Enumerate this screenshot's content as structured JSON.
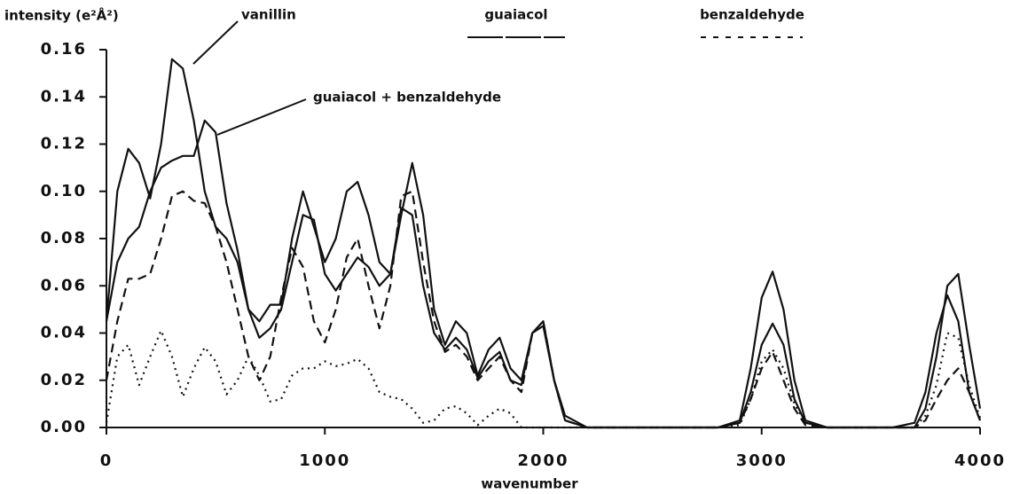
{
  "chart_data": {
    "type": "line",
    "ylabel": "intensity (e²Å²)",
    "xlabel": "wavenumber",
    "xlim": [
      0,
      4000
    ],
    "xticks": [
      0,
      1000,
      2000,
      3000,
      4000
    ],
    "ylim": [
      0,
      0.16
    ],
    "yticks": [
      {
        "value": 0,
        "label": "0.00"
      },
      0.02,
      0.04,
      0.06,
      0.08,
      {
        "value": 0.1,
        "label": "0.10"
      },
      0.12,
      0.14,
      0.16
    ],
    "x": [
      0,
      50,
      100,
      150,
      200,
      250,
      300,
      350,
      400,
      450,
      500,
      550,
      600,
      650,
      700,
      750,
      800,
      850,
      900,
      950,
      1000,
      1050,
      1100,
      1150,
      1200,
      1250,
      1300,
      1350,
      1400,
      1450,
      1500,
      1550,
      1600,
      1650,
      1700,
      1750,
      1800,
      1850,
      1900,
      1950,
      2000,
      2050,
      2100,
      2200,
      2400,
      2600,
      2800,
      2900,
      2950,
      3000,
      3050,
      3100,
      3150,
      3200,
      3300,
      3400,
      3600,
      3700,
      3750,
      3800,
      3850,
      3900,
      3950,
      4000
    ],
    "series": [
      {
        "name": "vanillin",
        "color": "#111111",
        "style": "solid",
        "values": [
          0.045,
          0.1,
          0.118,
          0.112,
          0.097,
          0.12,
          0.156,
          0.152,
          0.13,
          0.1,
          0.085,
          0.08,
          0.07,
          0.05,
          0.045,
          0.052,
          0.052,
          0.08,
          0.1,
          0.085,
          0.07,
          0.08,
          0.1,
          0.104,
          0.09,
          0.07,
          0.065,
          0.09,
          0.112,
          0.09,
          0.05,
          0.035,
          0.045,
          0.04,
          0.022,
          0.033,
          0.038,
          0.025,
          0.02,
          0.04,
          0.043,
          0.02,
          0.005,
          0,
          0,
          0,
          0,
          0.002,
          0.015,
          0.035,
          0.044,
          0.035,
          0.012,
          0.002,
          0,
          0,
          0,
          0.002,
          0.015,
          0.04,
          0.056,
          0.045,
          0.015,
          0.003
        ]
      },
      {
        "name": "guaiacol + benzaldehyde",
        "color": "#111111",
        "style": "solid",
        "values": [
          0.045,
          0.07,
          0.08,
          0.085,
          0.1,
          0.11,
          0.113,
          0.115,
          0.115,
          0.13,
          0.125,
          0.095,
          0.075,
          0.05,
          0.038,
          0.042,
          0.05,
          0.07,
          0.09,
          0.088,
          0.065,
          0.058,
          0.065,
          0.072,
          0.068,
          0.06,
          0.065,
          0.093,
          0.09,
          0.06,
          0.04,
          0.033,
          0.038,
          0.033,
          0.021,
          0.028,
          0.032,
          0.02,
          0.018,
          0.04,
          0.045,
          0.02,
          0.003,
          0,
          0,
          0,
          0,
          0.003,
          0.025,
          0.055,
          0.066,
          0.05,
          0.02,
          0.003,
          0,
          0,
          0,
          0,
          0.008,
          0.03,
          0.06,
          0.065,
          0.035,
          0.008
        ]
      },
      {
        "name": "guaiacol",
        "color": "#111111",
        "style": "dashed",
        "values": [
          0.02,
          0.045,
          0.063,
          0.063,
          0.065,
          0.08,
          0.098,
          0.1,
          0.096,
          0.095,
          0.085,
          0.07,
          0.05,
          0.03,
          0.02,
          0.03,
          0.055,
          0.076,
          0.068,
          0.045,
          0.036,
          0.05,
          0.072,
          0.08,
          0.06,
          0.042,
          0.06,
          0.098,
          0.1,
          0.07,
          0.045,
          0.032,
          0.035,
          0.03,
          0.02,
          0.025,
          0.03,
          0.02,
          0.015,
          0.04,
          0.045,
          0.02,
          0.003,
          0,
          0,
          0,
          0,
          0.002,
          0.012,
          0.025,
          0.032,
          0.02,
          0.008,
          0.001,
          0,
          0,
          0,
          0,
          0.003,
          0.012,
          0.02,
          0.025,
          0.015,
          0.003
        ]
      },
      {
        "name": "benzaldehyde",
        "color": "#111111",
        "style": "dotted",
        "values": [
          0.002,
          0.03,
          0.035,
          0.018,
          0.03,
          0.041,
          0.03,
          0.013,
          0.025,
          0.034,
          0.028,
          0.014,
          0.02,
          0.03,
          0.022,
          0.011,
          0.012,
          0.022,
          0.025,
          0.025,
          0.028,
          0.026,
          0.027,
          0.029,
          0.025,
          0.015,
          0.013,
          0.012,
          0.008,
          0.002,
          0.003,
          0.008,
          0.009,
          0.006,
          0.001,
          0.005,
          0.008,
          0.006,
          0,
          0,
          0,
          0,
          0,
          0,
          0,
          0,
          0,
          0.001,
          0.012,
          0.028,
          0.033,
          0.025,
          0.01,
          0.002,
          0,
          0,
          0,
          0,
          0.005,
          0.018,
          0.04,
          0.038,
          0.018,
          0.004
        ]
      }
    ]
  }
}
